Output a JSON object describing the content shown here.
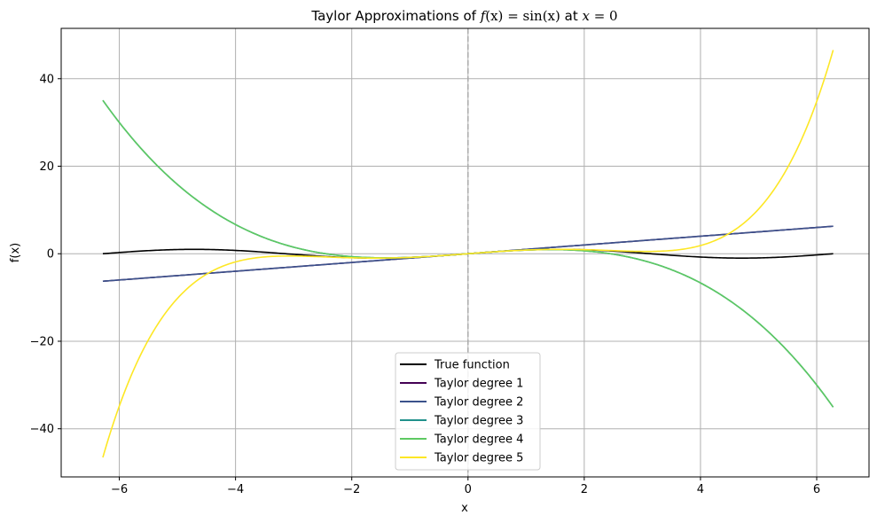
{
  "chart_data": {
    "type": "line",
    "title": {
      "prefix": "Taylor Approximations of ",
      "fx": "f",
      "paren_x": "(x)",
      "eq": " = ",
      "sin": "sin",
      "paren_x2": "(x)",
      "at": " at ",
      "xvar": "x",
      "eq2": " = 0"
    },
    "xlabel": "x",
    "ylabel": "f(x)",
    "xlim": [
      -7.0,
      6.9
    ],
    "ylim": [
      -51.0,
      51.5
    ],
    "x_range": [
      -6.283185,
      6.283185
    ],
    "x_ticks": [
      -6,
      -4,
      -2,
      0,
      2,
      4,
      6
    ],
    "x_tick_labels": [
      "−6",
      "−4",
      "−2",
      "0",
      "2",
      "4",
      "6"
    ],
    "y_ticks": [
      -40,
      -20,
      0,
      20,
      40
    ],
    "y_tick_labels": [
      "−40",
      "−20",
      "0",
      "20",
      "40"
    ],
    "grid": true,
    "legend_position": "lower center",
    "vline": {
      "x": 0,
      "style": "dashed",
      "color": "#aaaaaa"
    },
    "series": [
      {
        "name": "True function",
        "function": "sin(x)",
        "color": "#000000"
      },
      {
        "name": "Taylor degree 1",
        "function": "x",
        "color": "#440154"
      },
      {
        "name": "Taylor degree 2",
        "function": "x",
        "color": "#3b528b"
      },
      {
        "name": "Taylor degree 3",
        "function": "x - x^3/6",
        "color": "#21918c"
      },
      {
        "name": "Taylor degree 4",
        "function": "x - x^3/6",
        "color": "#5ec962"
      },
      {
        "name": "Taylor degree 5",
        "function": "x - x^3/6 + x^5/120",
        "color": "#fde725"
      }
    ]
  }
}
